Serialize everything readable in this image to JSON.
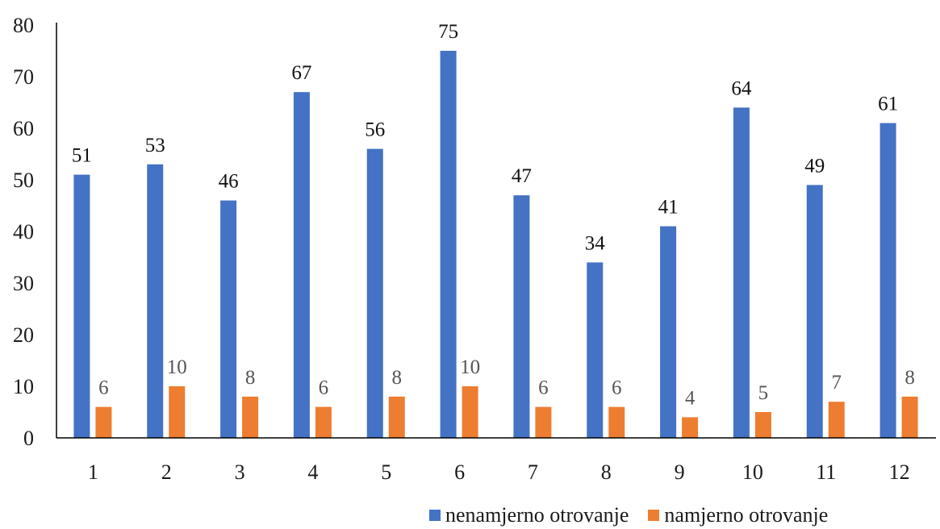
{
  "chart_data": {
    "type": "bar",
    "categories": [
      "1",
      "2",
      "3",
      "4",
      "5",
      "6",
      "7",
      "8",
      "9",
      "10",
      "11",
      "12"
    ],
    "series": [
      {
        "name": "nenamjerno otrovanje",
        "color": "#4472C4",
        "values": [
          51,
          53,
          46,
          67,
          56,
          75,
          47,
          34,
          41,
          64,
          49,
          61
        ]
      },
      {
        "name": "namjerno otrovanje",
        "color": "#ED7D31",
        "values": [
          6,
          10,
          8,
          6,
          8,
          10,
          6,
          6,
          4,
          5,
          7,
          8
        ]
      }
    ],
    "ylim": [
      0,
      80
    ],
    "yticks": [
      "0",
      "10",
      "20",
      "30",
      "40",
      "50",
      "60",
      "70",
      "80"
    ],
    "grid": false,
    "legend_position": "bottom-right",
    "data_labels": true
  }
}
